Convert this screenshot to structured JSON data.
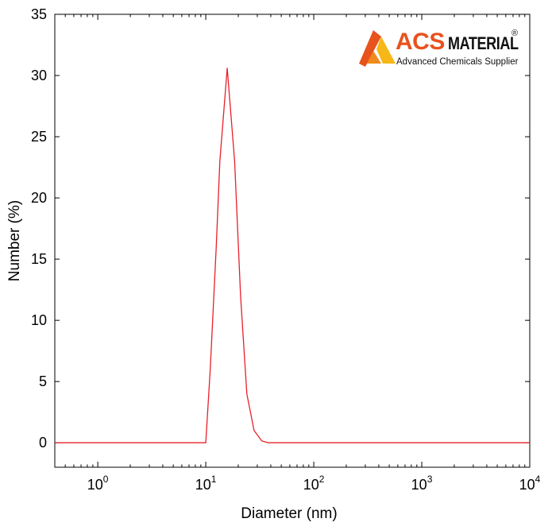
{
  "chart_data": {
    "type": "line",
    "xlabel": "Diameter (nm)",
    "ylabel": "Number (%)",
    "xscale": "log",
    "xlim": [
      0.4,
      10000
    ],
    "ylim": [
      -2,
      35
    ],
    "xticks": [
      {
        "value": 1,
        "base": "10",
        "exp": "0"
      },
      {
        "value": 10,
        "base": "10",
        "exp": "1"
      },
      {
        "value": 100,
        "base": "10",
        "exp": "2"
      },
      {
        "value": 1000,
        "base": "10",
        "exp": "3"
      },
      {
        "value": 10000,
        "base": "10",
        "exp": "4"
      }
    ],
    "yticks": [
      0,
      5,
      10,
      15,
      20,
      25,
      30,
      35
    ],
    "grid": false,
    "series": [
      {
        "color": "#e8202a",
        "points": [
          [
            0.4,
            0
          ],
          [
            10.0,
            0
          ],
          [
            11.0,
            6.0
          ],
          [
            12.5,
            16.0
          ],
          [
            13.5,
            23.0
          ],
          [
            15.8,
            30.6
          ],
          [
            18.5,
            23.0
          ],
          [
            21.0,
            12.0
          ],
          [
            24.0,
            4.0
          ],
          [
            28.0,
            1.0
          ],
          [
            33.0,
            0.15
          ],
          [
            38.0,
            0
          ],
          [
            10000,
            0
          ]
        ]
      }
    ]
  },
  "logo": {
    "brand": "ACS",
    "name": "MATERIAL",
    "reg": "®",
    "tagline": "Advanced Chemicals Supplier",
    "colors": {
      "orange": "#e8521d",
      "yellow": "#f7b718",
      "dark": "#111111"
    }
  }
}
